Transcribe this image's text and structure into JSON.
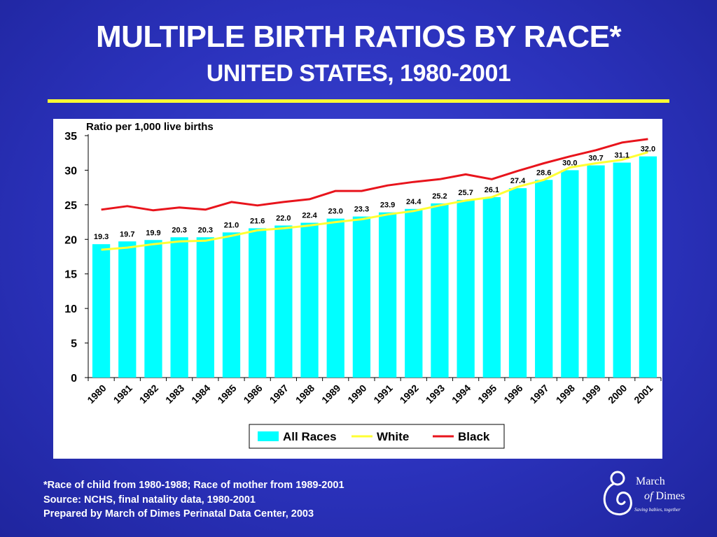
{
  "slide": {
    "title_line1": "MULTIPLE BIRTH RATIOS BY RACE*",
    "title_line2": "UNITED STATES, 1980-2001",
    "footnote1": "*Race of child from 1980-1988; Race of mother from 1989-2001",
    "footnote2": "Source: NCHS, final natality data, 1980-2001",
    "footnote3": "Prepared by March of Dimes Perinatal Data Center, 2003",
    "logo_word1": "March",
    "logo_word2_prefix": "of",
    "logo_word2_suffix": " Dimes",
    "logo_tagline": "Saving babies, together",
    "colors": {
      "background": "#2b32bc",
      "rule": "#ffff33",
      "bars": "#00ffff",
      "white_series": "#ffff33",
      "black_series": "#e8141c"
    }
  },
  "chart_data": {
    "type": "bar",
    "ylabel": "Ratio per 1,000 live births",
    "ylim": [
      0,
      35
    ],
    "yticks": [
      0,
      5,
      10,
      15,
      20,
      25,
      30,
      35
    ],
    "grid": false,
    "legend_position": "bottom-right",
    "categories": [
      "1980",
      "1981",
      "1982",
      "1983",
      "1984",
      "1985",
      "1986",
      "1987",
      "1988",
      "1989",
      "1990",
      "1991",
      "1992",
      "1993",
      "1994",
      "1995",
      "1996",
      "1997",
      "1998",
      "1999",
      "2000",
      "2001"
    ],
    "series": [
      {
        "name": "All Races",
        "kind": "bar",
        "color": "#00ffff",
        "values": [
          19.3,
          19.7,
          19.9,
          20.3,
          20.3,
          21.0,
          21.6,
          22.0,
          22.4,
          23.0,
          23.3,
          23.9,
          24.4,
          25.2,
          25.7,
          26.1,
          27.4,
          28.6,
          30.0,
          30.7,
          31.1,
          32.0
        ],
        "labels": [
          "19.3",
          "19.7",
          "19.9",
          "20.3",
          "20.3",
          "21.0",
          "21.6",
          "22.0",
          "22.4",
          "23.0",
          "23.3",
          "23.9",
          "24.4",
          "25.2",
          "25.7",
          "26.1",
          "27.4",
          "28.6",
          "30.0",
          "30.7",
          "31.1",
          "32.0"
        ]
      },
      {
        "name": "White",
        "kind": "line",
        "color": "#ffff33",
        "values": [
          18.5,
          18.8,
          19.3,
          19.7,
          19.8,
          20.5,
          21.3,
          21.6,
          22.0,
          22.5,
          22.9,
          23.6,
          24.1,
          24.9,
          25.6,
          26.1,
          27.6,
          28.6,
          30.4,
          31.0,
          31.5,
          32.6
        ]
      },
      {
        "name": "Black",
        "kind": "line",
        "color": "#e8141c",
        "values": [
          24.3,
          24.8,
          24.2,
          24.6,
          24.3,
          25.4,
          24.9,
          25.4,
          25.8,
          27.0,
          27.0,
          27.8,
          28.3,
          28.7,
          29.4,
          28.7,
          29.9,
          31.0,
          32.0,
          32.9,
          34.0,
          34.5
        ]
      }
    ]
  }
}
